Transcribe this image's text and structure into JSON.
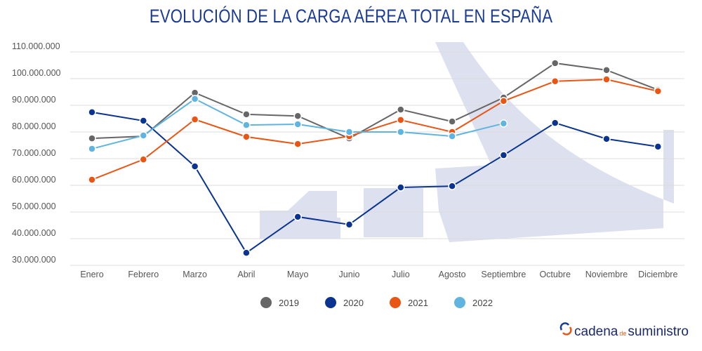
{
  "title": "EVOLUCIÓN DE LA CARGA AÉREA TOTAL EN ESPAÑA",
  "logo": {
    "part1": "cadena",
    "part2": "de",
    "part3": "suministro"
  },
  "chart_data": {
    "type": "line",
    "title": "EVOLUCIÓN DE LA CARGA AÉREA TOTAL EN ESPAÑA",
    "xlabel": "",
    "ylabel": "",
    "categories": [
      "Enero",
      "Febrero",
      "Marzo",
      "Abril",
      "Mayo",
      "Junio",
      "Julio",
      "Agosto",
      "Septiembre",
      "Octubre",
      "Noviembre",
      "Diciembre"
    ],
    "ylim": [
      30000000,
      110000000
    ],
    "yticks": [
      30000000,
      40000000,
      50000000,
      60000000,
      70000000,
      80000000,
      90000000,
      100000000,
      110000000
    ],
    "ytick_labels": [
      "30.000.000",
      "40.000.000",
      "50.000.000",
      "60.000.000",
      "70.000.000",
      "80.000.000",
      "90.000.000",
      "100.000.000",
      "110.000.000"
    ],
    "grid": true,
    "legend": "bottom",
    "series": [
      {
        "name": "2019",
        "color": "#666666",
        "values": [
          77600000,
          78400000,
          94700000,
          86600000,
          86000000,
          77600000,
          88400000,
          83900000,
          92900000,
          105800000,
          103200000,
          95800000
        ]
      },
      {
        "name": "2020",
        "color": "#0a3490",
        "values": [
          87400000,
          84200000,
          67100000,
          34700000,
          48200000,
          45300000,
          59200000,
          59700000,
          71300000,
          83400000,
          77400000,
          74500000
        ]
      },
      {
        "name": "2021",
        "color": "#ea5514",
        "values": [
          62100000,
          69700000,
          84700000,
          78200000,
          75500000,
          78400000,
          84500000,
          80000000,
          91600000,
          99000000,
          99700000,
          95300000
        ]
      },
      {
        "name": "2022",
        "color": "#5fb4e0",
        "values": [
          73700000,
          78700000,
          92400000,
          82600000,
          82900000,
          80000000,
          80000000,
          78400000,
          83200000,
          null,
          null,
          null
        ]
      }
    ]
  }
}
